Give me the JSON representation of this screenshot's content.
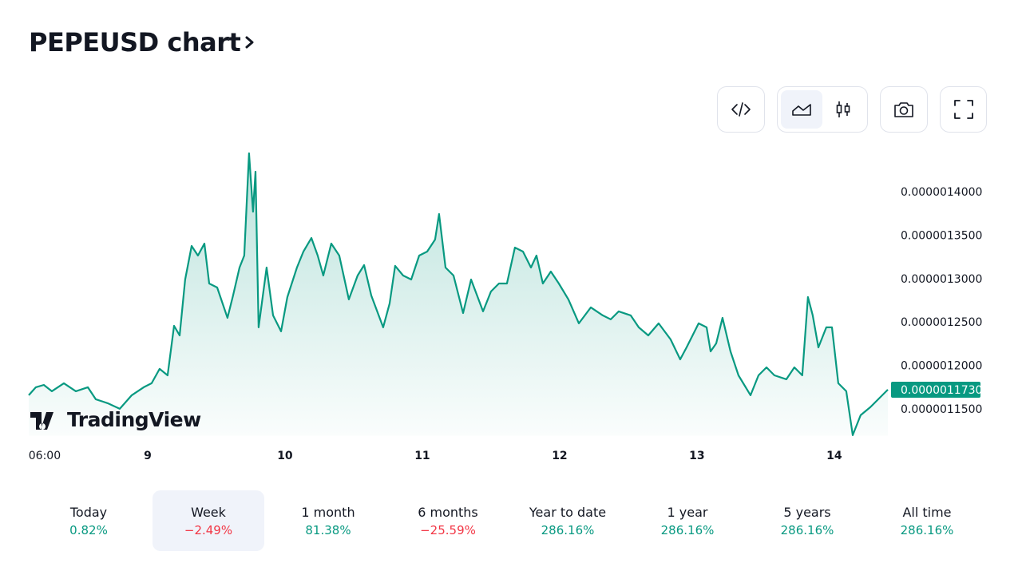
{
  "header": {
    "title": "PEPEUSD chart"
  },
  "chart_data": {
    "type": "line",
    "color": "#089981",
    "watermark": "TradingView",
    "x": [
      8.134,
      8.186,
      8.244,
      8.302,
      8.39,
      8.477,
      8.564,
      8.622,
      8.709,
      8.797,
      8.884,
      8.971,
      9.029,
      9.087,
      9.145,
      9.192,
      9.233,
      9.273,
      9.32,
      9.366,
      9.413,
      9.448,
      9.506,
      9.581,
      9.622,
      9.669,
      9.703,
      9.738,
      9.767,
      9.785,
      9.808,
      9.866,
      9.913,
      9.971,
      10.017,
      10.087,
      10.134,
      10.192,
      10.238,
      10.279,
      10.337,
      10.395,
      10.465,
      10.529,
      10.576,
      10.628,
      10.715,
      10.762,
      10.802,
      10.86,
      10.919,
      10.977,
      11.035,
      11.093,
      11.122,
      11.169,
      11.227,
      11.297,
      11.355,
      11.442,
      11.5,
      11.558,
      11.616,
      11.674,
      11.733,
      11.791,
      11.831,
      11.878,
      11.936,
      11.994,
      12.064,
      12.14,
      12.227,
      12.314,
      12.372,
      12.43,
      12.517,
      12.576,
      12.645,
      12.721,
      12.808,
      12.878,
      12.924,
      13.012,
      13.07,
      13.099,
      13.14,
      13.186,
      13.244,
      13.302,
      13.39,
      13.448,
      13.506,
      13.564,
      13.651,
      13.709,
      13.767,
      13.808,
      13.843,
      13.884,
      13.942,
      13.983,
      14.029,
      14.087,
      14.134,
      14.192,
      14.262,
      14.32,
      14.39
    ],
    "values": [
      1.1666e-06,
      1.1758e-06,
      1.1785e-06,
      1.1712e-06,
      1.1804e-06,
      1.1712e-06,
      1.1758e-06,
      1.162e-06,
      1.1574e-06,
      1.151e-06,
      1.1666e-06,
      1.1758e-06,
      1.1804e-06,
      1.1969e-06,
      1.1895e-06,
      1.2465e-06,
      1.2355e-06,
      1.2998e-06,
      1.3384e-06,
      1.3274e-06,
      1.3412e-06,
      1.2952e-06,
      1.2906e-06,
      1.2557e-06,
      1.2814e-06,
      1.3136e-06,
      1.3274e-06,
      1.445e-06,
      1.3779e-06,
      1.4239e-06,
      1.2447e-06,
      1.3136e-06,
      1.2585e-06,
      1.2401e-06,
      1.2796e-06,
      1.3136e-06,
      1.332e-06,
      1.3476e-06,
      1.3274e-06,
      1.3044e-06,
      1.3412e-06,
      1.3274e-06,
      1.2769e-06,
      1.3044e-06,
      1.3164e-06,
      1.2814e-06,
      1.2447e-06,
      1.2723e-06,
      1.3155e-06,
      1.3044e-06,
      1.2998e-06,
      1.3274e-06,
      1.332e-06,
      1.3458e-06,
      1.3752e-06,
      1.3136e-06,
      1.3044e-06,
      1.2612e-06,
      1.2998e-06,
      1.2631e-06,
      1.286e-06,
      1.2952e-06,
      1.2952e-06,
      1.3366e-06,
      1.332e-06,
      1.3136e-06,
      1.3274e-06,
      1.2952e-06,
      1.309e-06,
      1.2952e-06,
      1.2769e-06,
      1.2493e-06,
      1.2677e-06,
      1.2585e-06,
      1.2539e-06,
      1.2631e-06,
      1.2585e-06,
      1.2447e-06,
      1.2355e-06,
      1.2493e-06,
      1.2309e-06,
      1.2079e-06,
      1.2217e-06,
      1.2493e-06,
      1.2447e-06,
      1.2171e-06,
      1.2263e-06,
      1.2557e-06,
      1.2171e-06,
      1.1895e-06,
      1.1666e-06,
      1.1895e-06,
      1.1987e-06,
      1.1895e-06,
      1.185e-06,
      1.1987e-06,
      1.1895e-06,
      1.2796e-06,
      1.2585e-06,
      1.2217e-06,
      1.2447e-06,
      1.2447e-06,
      1.1804e-06,
      1.1712e-06,
      1.1206e-06,
      1.1436e-06,
      1.1528e-06,
      1.162e-06,
      1.173e-06
    ],
    "xlim": [
      8.134,
      14.39
    ],
    "xticks": [
      {
        "value": 8.25,
        "label": "06:00"
      },
      9,
      10,
      11,
      12,
      13,
      14
    ],
    "ylim": [
      1.12e-06,
      1.45e-06
    ],
    "yticks": [
      {
        "value": 1.4e-06,
        "label": "0.0000014000"
      },
      {
        "value": 1.35e-06,
        "label": "0.0000013500"
      },
      {
        "value": 1.3e-06,
        "label": "0.0000013000"
      },
      {
        "value": 1.25e-06,
        "label": "0.0000012500"
      },
      {
        "value": 1.2e-06,
        "label": "0.0000012000"
      },
      {
        "value": 1.15e-06,
        "label": "0.0000011500"
      }
    ],
    "last_price": {
      "value": 1.173e-06,
      "label": "0.0000011730"
    },
    "grid": false
  },
  "periods": {
    "selected": 1,
    "items": [
      {
        "label": "Today",
        "change": "0.82%"
      },
      {
        "label": "Week",
        "change": "−2.49%"
      },
      {
        "label": "1 month",
        "change": "81.38%"
      },
      {
        "label": "6 months",
        "change": "−25.59%"
      },
      {
        "label": "Year to date",
        "change": "286.16%"
      },
      {
        "label": "1 year",
        "change": "286.16%"
      },
      {
        "label": "5 years",
        "change": "286.16%"
      },
      {
        "label": "All time",
        "change": "286.16%"
      }
    ]
  }
}
